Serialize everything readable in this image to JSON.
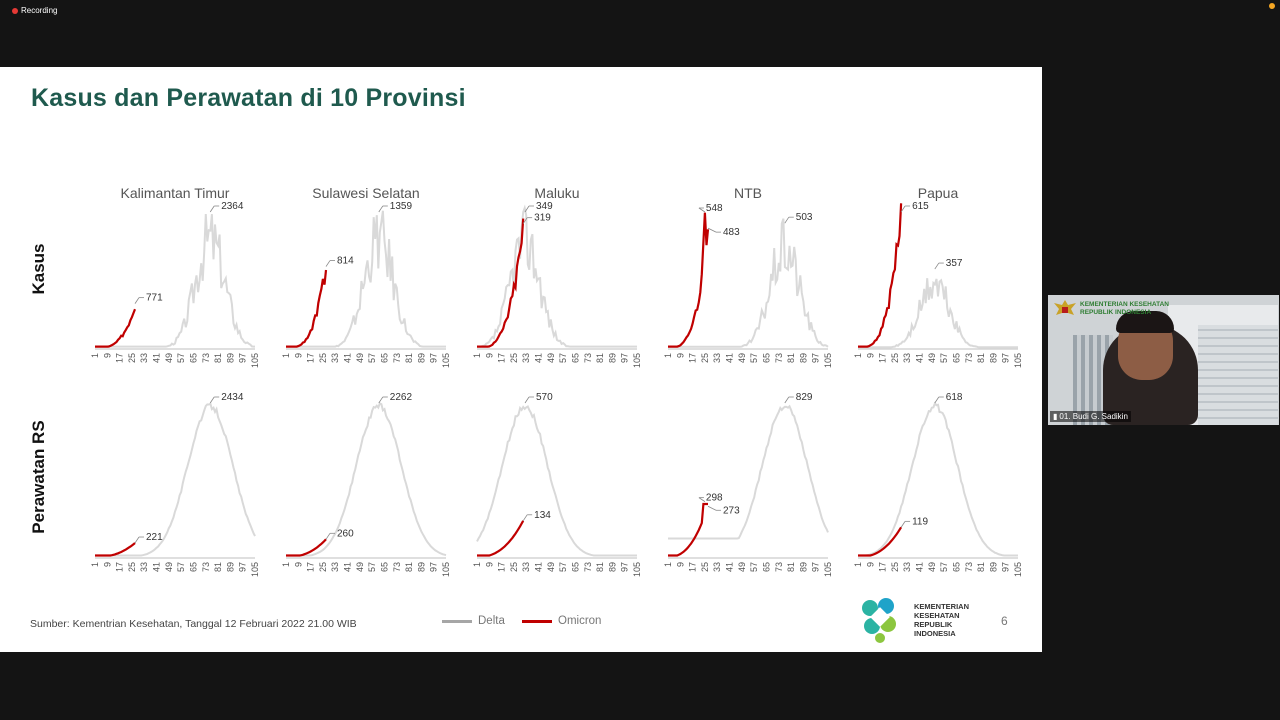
{
  "recording": {
    "label": "Recording"
  },
  "slide": {
    "title": "Kasus dan Perawatan di 10 Provinsi",
    "row_labels": [
      "Kasus",
      "Perawatan RS"
    ],
    "provinces": [
      "Kalimantan Timur",
      "Sulawesi Selatan",
      "Maluku",
      "NTB",
      "Papua"
    ],
    "source": "Sumber: Kementrian Kesehatan, Tanggal 12 Februari 2022 21.00 WIB",
    "legend": {
      "delta": "Delta",
      "omicron": "Omicron"
    },
    "logo_text": "KEMENTERIAN KESEHATAN REPUBLIK INDONESIA",
    "page_number": "6",
    "colors": {
      "delta": "#d9d9d9",
      "omicron": "#c00000",
      "title": "#1f5a4e"
    }
  },
  "chart_data": [
    {
      "type": "line",
      "row": "Kasus",
      "title": "Kalimantan Timur",
      "x_ticks": [
        "1",
        "9",
        "17",
        "25",
        "33",
        "41",
        "49",
        "57",
        "65",
        "73",
        "81",
        "89",
        "97",
        "105"
      ],
      "series": [
        {
          "name": "Delta",
          "peak": 2364
        },
        {
          "name": "Omicron",
          "latest": 771
        }
      ]
    },
    {
      "type": "line",
      "row": "Kasus",
      "title": "Sulawesi Selatan",
      "x_ticks": [
        "1",
        "9",
        "17",
        "25",
        "33",
        "41",
        "49",
        "57",
        "65",
        "73",
        "81",
        "89",
        "97",
        "105"
      ],
      "series": [
        {
          "name": "Delta",
          "peak": 1359
        },
        {
          "name": "Omicron",
          "latest": 814
        }
      ]
    },
    {
      "type": "line",
      "row": "Kasus",
      "title": "Maluku",
      "x_ticks": [
        "1",
        "9",
        "17",
        "25",
        "33",
        "41",
        "49",
        "57",
        "65",
        "73",
        "81",
        "89",
        "97",
        "105"
      ],
      "series": [
        {
          "name": "Delta",
          "peak": 349
        },
        {
          "name": "Omicron",
          "latest": 319
        }
      ]
    },
    {
      "type": "line",
      "row": "Kasus",
      "title": "NTB",
      "x_ticks": [
        "1",
        "9",
        "17",
        "25",
        "33",
        "41",
        "49",
        "57",
        "65",
        "73",
        "81",
        "89",
        "97",
        "105"
      ],
      "series": [
        {
          "name": "Delta",
          "peak": 503
        },
        {
          "name": "Omicron",
          "peak": 548,
          "latest": 483
        }
      ]
    },
    {
      "type": "line",
      "row": "Kasus",
      "title": "Papua",
      "x_ticks": [
        "1",
        "9",
        "17",
        "25",
        "33",
        "41",
        "49",
        "57",
        "65",
        "73",
        "81",
        "89",
        "97",
        "105"
      ],
      "series": [
        {
          "name": "Delta",
          "peak": 357
        },
        {
          "name": "Omicron",
          "latest": 615
        }
      ]
    },
    {
      "type": "line",
      "row": "Perawatan RS",
      "title": "Kalimantan Timur",
      "x_ticks": [
        "1",
        "9",
        "17",
        "25",
        "33",
        "41",
        "49",
        "57",
        "65",
        "73",
        "81",
        "89",
        "97",
        "105"
      ],
      "series": [
        {
          "name": "Delta",
          "peak": 2434
        },
        {
          "name": "Omicron",
          "latest": 221
        }
      ]
    },
    {
      "type": "line",
      "row": "Perawatan RS",
      "title": "Sulawesi Selatan",
      "x_ticks": [
        "1",
        "9",
        "17",
        "25",
        "33",
        "41",
        "49",
        "57",
        "65",
        "73",
        "81",
        "89",
        "97",
        "105"
      ],
      "series": [
        {
          "name": "Delta",
          "peak": 2262
        },
        {
          "name": "Omicron",
          "latest": 260
        }
      ]
    },
    {
      "type": "line",
      "row": "Perawatan RS",
      "title": "Maluku",
      "x_ticks": [
        "1",
        "9",
        "17",
        "25",
        "33",
        "41",
        "49",
        "57",
        "65",
        "73",
        "81",
        "89",
        "97",
        "105"
      ],
      "series": [
        {
          "name": "Delta",
          "peak": 570
        },
        {
          "name": "Omicron",
          "latest": 134
        }
      ]
    },
    {
      "type": "line",
      "row": "Perawatan RS",
      "title": "NTB",
      "x_ticks": [
        "1",
        "9",
        "17",
        "25",
        "33",
        "41",
        "49",
        "57",
        "65",
        "73",
        "81",
        "89",
        "97",
        "105"
      ],
      "series": [
        {
          "name": "Delta",
          "peak": 829
        },
        {
          "name": "Omicron",
          "peak": 298,
          "latest": 273
        }
      ]
    },
    {
      "type": "line",
      "row": "Perawatan RS",
      "title": "Papua",
      "x_ticks": [
        "1",
        "9",
        "17",
        "25",
        "33",
        "41",
        "49",
        "57",
        "65",
        "73",
        "81",
        "89",
        "97",
        "105"
      ],
      "series": [
        {
          "name": "Delta",
          "peak": 618
        },
        {
          "name": "Omicron",
          "latest": 119
        }
      ]
    }
  ],
  "video": {
    "participant": "01. Budi G. Sadikin",
    "brand": "KEMENTERIAN KESEHATAN REPUBLIK INDONESIA"
  }
}
